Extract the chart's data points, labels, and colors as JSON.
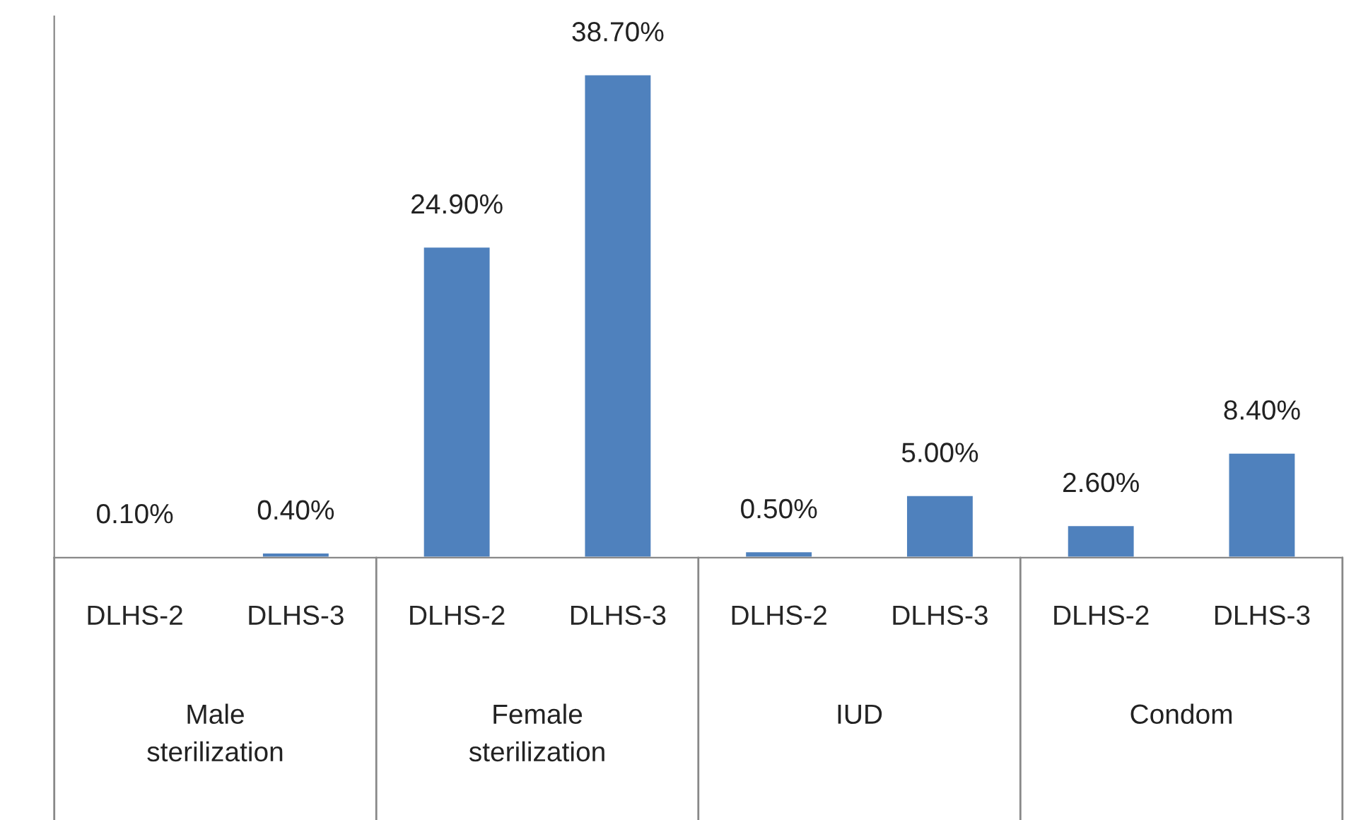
{
  "chart_data": {
    "type": "bar",
    "categories": [
      "DLHS-2",
      "DLHS-3",
      "DLHS-2",
      "DLHS-3",
      "DLHS-2",
      "DLHS-3",
      "DLHS-2",
      "DLHS-3"
    ],
    "values": [
      0.1,
      0.4,
      24.9,
      38.7,
      0.5,
      5.0,
      2.6,
      8.4
    ],
    "value_labels": [
      "0.10%",
      "0.40%",
      "24.90%",
      "38.70%",
      "0.50%",
      "5.00%",
      "2.60%",
      "8.40%"
    ],
    "color": "#4f81bd",
    "annotations": [
      "Male\nsterilization",
      "Female\nsterilization",
      "IUD",
      "Condom"
    ]
  }
}
